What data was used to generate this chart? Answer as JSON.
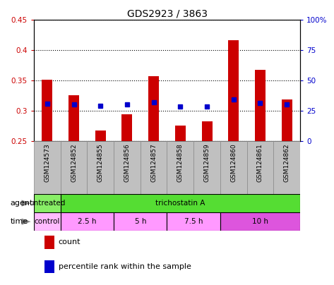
{
  "title": "GDS2923 / 3863",
  "samples": [
    "GSM124573",
    "GSM124852",
    "GSM124855",
    "GSM124856",
    "GSM124857",
    "GSM124858",
    "GSM124859",
    "GSM124860",
    "GSM124861",
    "GSM124862"
  ],
  "bar_bottom": 0.25,
  "bar_tops": [
    0.351,
    0.326,
    0.268,
    0.294,
    0.357,
    0.276,
    0.283,
    0.416,
    0.368,
    0.319
  ],
  "percentile_ranks": [
    0.312,
    0.311,
    0.308,
    0.311,
    0.314,
    0.307,
    0.307,
    0.319,
    0.313,
    0.311
  ],
  "ylim": [
    0.25,
    0.45
  ],
  "yticks_left": [
    0.25,
    0.3,
    0.35,
    0.4,
    0.45
  ],
  "yticks_right": [
    0,
    25,
    50,
    75,
    100
  ],
  "bar_color": "#CC0000",
  "dot_color": "#0000CC",
  "agent_color_untreated": "#88EE66",
  "agent_color_trichostatin": "#55DD33",
  "time_color_control": "#FFBBFF",
  "time_color_2h": "#FF99FF",
  "time_color_5h": "#FF99FF",
  "time_color_75h": "#FF99FF",
  "time_color_10h": "#DD55DD",
  "tick_label_color_left": "#CC0000",
  "tick_label_color_right": "#0000CC",
  "xtick_bg_color": "#C0C0C0",
  "title_fontsize": 10,
  "bar_width": 0.4,
  "dot_size": 4
}
